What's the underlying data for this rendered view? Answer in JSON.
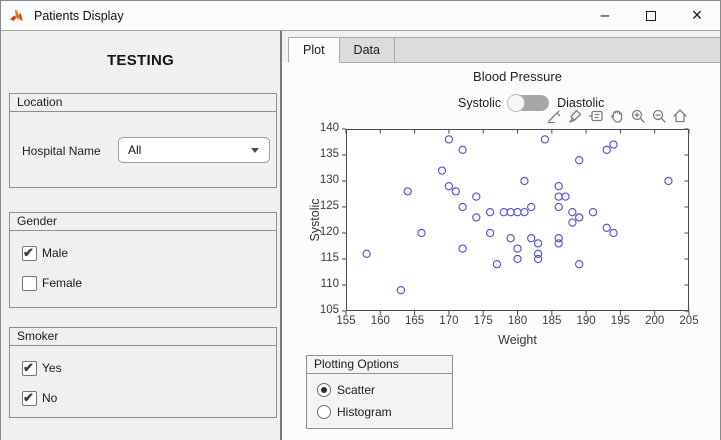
{
  "window": {
    "title": "Patients Display",
    "minimize_glyph": "–",
    "close_glyph": "×"
  },
  "left": {
    "heading": "TESTING",
    "location_panel": {
      "title": "Location",
      "hospital_label": "Hospital Name",
      "hospital_value": "All"
    },
    "gender_panel": {
      "title": "Gender",
      "options": [
        {
          "label": "Male",
          "checked": true
        },
        {
          "label": "Female",
          "checked": false
        }
      ]
    },
    "smoker_panel": {
      "title": "Smoker",
      "options": [
        {
          "label": "Yes",
          "checked": true
        },
        {
          "label": "No",
          "checked": true
        }
      ]
    }
  },
  "right": {
    "tabs": [
      {
        "label": "Plot",
        "active": true
      },
      {
        "label": "Data",
        "active": false
      }
    ],
    "switch": {
      "left_label": "Systolic",
      "right_label": "Diastolic",
      "state": "Systolic"
    },
    "toolbar_icons": [
      "export-icon",
      "brush-icon",
      "datatips-icon",
      "pan-icon",
      "zoom-in-icon",
      "zoom-out-icon",
      "restore-view-icon"
    ],
    "plotting_panel": {
      "title": "Plotting Options",
      "options": [
        {
          "label": "Scatter",
          "selected": true
        },
        {
          "label": "Histogram",
          "selected": false
        }
      ]
    }
  },
  "chart_data": {
    "type": "scatter",
    "title": "Blood Pressure",
    "xlabel": "Weight",
    "ylabel": "Systolic",
    "xlim": [
      155,
      205
    ],
    "ylim": [
      105,
      140
    ],
    "xticks": [
      155,
      160,
      165,
      170,
      175,
      180,
      185,
      190,
      195,
      200,
      205
    ],
    "yticks": [
      105,
      110,
      115,
      120,
      125,
      130,
      135,
      140
    ],
    "grid": false,
    "legend": null,
    "marker": "open-circle",
    "marker_color": "#4b4bd2",
    "axis_color": "#4a4a4a",
    "points": [
      [
        158,
        116
      ],
      [
        163,
        109
      ],
      [
        164,
        128
      ],
      [
        166,
        120
      ],
      [
        169,
        132
      ],
      [
        170,
        129
      ],
      [
        170,
        138
      ],
      [
        171,
        128
      ],
      [
        172,
        117
      ],
      [
        172,
        125
      ],
      [
        172,
        136
      ],
      [
        174,
        123
      ],
      [
        174,
        127
      ],
      [
        176,
        120
      ],
      [
        176,
        124
      ],
      [
        177,
        114
      ],
      [
        178,
        124
      ],
      [
        179,
        119
      ],
      [
        179,
        124
      ],
      [
        180,
        115
      ],
      [
        180,
        117
      ],
      [
        180,
        124
      ],
      [
        181,
        124
      ],
      [
        181,
        130
      ],
      [
        182,
        119
      ],
      [
        182,
        125
      ],
      [
        183,
        115
      ],
      [
        183,
        116
      ],
      [
        183,
        118
      ],
      [
        184,
        138
      ],
      [
        186,
        118
      ],
      [
        186,
        119
      ],
      [
        186,
        125
      ],
      [
        186,
        127
      ],
      [
        186,
        129
      ],
      [
        187,
        127
      ],
      [
        188,
        122
      ],
      [
        188,
        124
      ],
      [
        189,
        114
      ],
      [
        189,
        123
      ],
      [
        189,
        134
      ],
      [
        191,
        124
      ],
      [
        193,
        121
      ],
      [
        193,
        136
      ],
      [
        194,
        120
      ],
      [
        194,
        137
      ],
      [
        202,
        130
      ]
    ]
  }
}
